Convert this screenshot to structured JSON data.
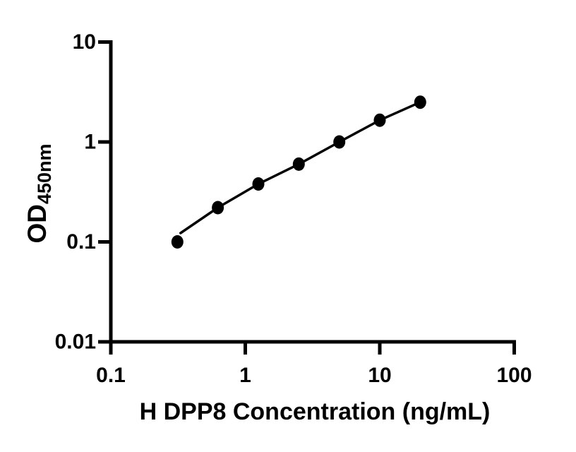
{
  "figure": {
    "background_color": "#ffffff",
    "foreground_color": "#000000"
  },
  "chart_data": {
    "type": "line",
    "title": "",
    "xlabel": "H DPP8 Concentration (ng/mL)",
    "ylabel": "OD",
    "ylabel_subscript": "450nm",
    "x_scale": "log",
    "y_scale": "log",
    "xlim": [
      0.1,
      100
    ],
    "ylim": [
      0.01,
      10
    ],
    "x_tick_labels": [
      "0.1",
      "1",
      "10",
      "100"
    ],
    "y_tick_labels": [
      "10",
      "1",
      "0.1",
      "0.01"
    ],
    "grid": false,
    "legend": "none",
    "line_color": "#000000",
    "marker_color": "#000000",
    "marker_style": "filled-circle",
    "series": [
      {
        "x": [
          0.3125,
          0.625,
          1.25,
          2.5,
          5,
          10,
          20
        ],
        "y": [
          0.1,
          0.22,
          0.38,
          0.6,
          1.0,
          1.65,
          2.5
        ]
      }
    ]
  }
}
